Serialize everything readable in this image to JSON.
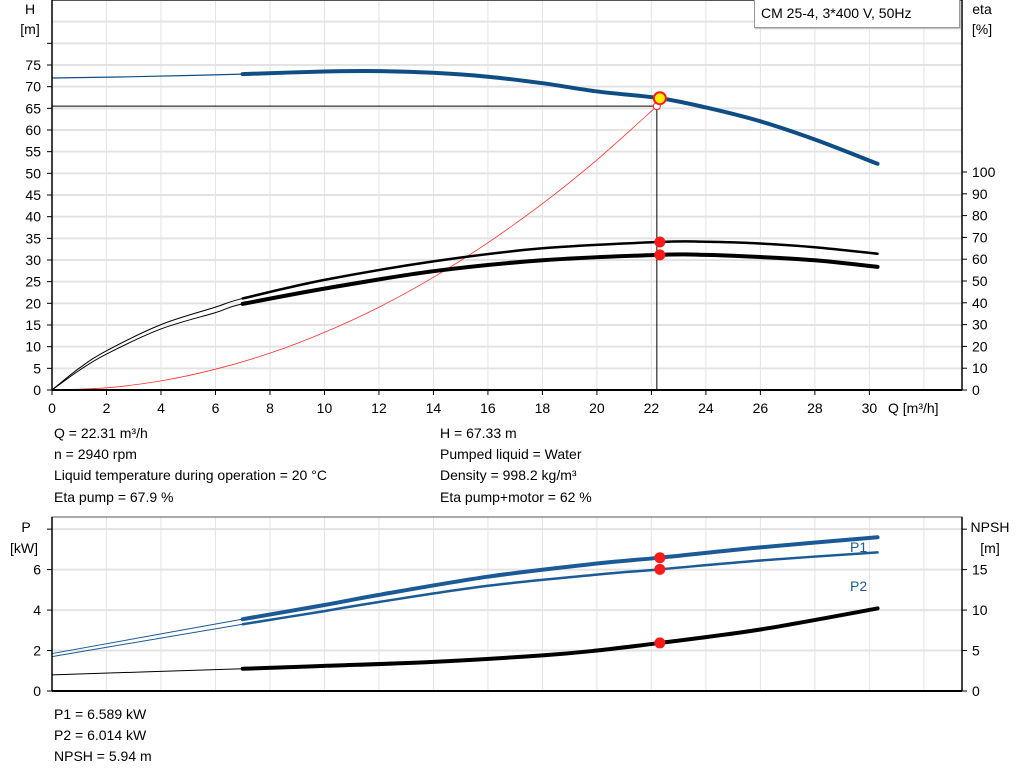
{
  "legend_title": "CM 25-4, 3*400 V, 50Hz",
  "info": {
    "left": [
      "Q = 22.31 m³/h",
      "n = 2940 rpm",
      "Liquid temperature during operation = 20 °C",
      "Eta pump = 67.9 %"
    ],
    "right": [
      "H = 67.33 m",
      "Pumped liquid = Water",
      "Density = 998.2 kg/m³",
      "Eta pump+motor = 62 %"
    ],
    "bottom": [
      "P1 = 6.589 kW",
      "P2 = 6.014 kW",
      "NPSH = 5.94 m"
    ]
  },
  "colors": {
    "head": "#0f4d85",
    "eta": "#000000",
    "system": "#ff3030",
    "power": "#1a5a96",
    "npsh": "#000000",
    "marker": "#ff1a1a",
    "duty_point": "#ffee00",
    "grid": "#e3e3e3"
  },
  "chart_data": [
    {
      "type": "line",
      "xlabel": "Q [m³/h]",
      "ylabel": "H\n[m]",
      "y2label": "eta\n[%]",
      "xlim": [
        0,
        33.4
      ],
      "ylim": [
        0,
        90
      ],
      "y2lim": [
        0,
        100
      ],
      "xticks": [
        0,
        2,
        4,
        6,
        8,
        10,
        12,
        14,
        16,
        18,
        20,
        22,
        24,
        26,
        28,
        30
      ],
      "yticks": [
        0,
        5,
        10,
        15,
        20,
        25,
        30,
        35,
        40,
        45,
        50,
        55,
        60,
        65,
        70,
        75
      ],
      "y2ticks": [
        0,
        10,
        20,
        30,
        40,
        50,
        60,
        70,
        80,
        90,
        100
      ],
      "grid": true,
      "series": [
        {
          "key": "head",
          "axis": "left",
          "x": [
            0,
            3,
            7,
            10,
            12,
            14,
            16,
            18,
            20,
            22.31,
            24,
            26,
            28,
            30.3
          ],
          "y": [
            72,
            72.3,
            72.9,
            73.5,
            73.6,
            73.2,
            72.3,
            70.8,
            68.9,
            67.33,
            65.2,
            62,
            57.8,
            52.2
          ]
        },
        {
          "key": "eta_pump",
          "axis": "right",
          "x": [
            0,
            1,
            2,
            4,
            6,
            7,
            10,
            14,
            18,
            22.31,
            24,
            26,
            28,
            30.3
          ],
          "y": [
            0,
            10,
            18,
            30,
            38,
            42,
            50.5,
            59,
            65,
            67.9,
            68,
            67.2,
            65.5,
            62.5
          ]
        },
        {
          "key": "eta_pump_motor",
          "axis": "right",
          "x": [
            0,
            1,
            2,
            4,
            6,
            7,
            10,
            14,
            18,
            22.31,
            24,
            26,
            28,
            30.3
          ],
          "y": [
            0,
            9,
            16.5,
            28,
            35.5,
            39.5,
            46.5,
            54.5,
            59.5,
            62,
            62,
            61,
            59.5,
            56.5
          ]
        },
        {
          "key": "system",
          "axis": "left",
          "x": [
            0,
            2,
            4,
            6,
            8,
            10,
            12,
            14,
            16,
            18,
            20,
            22.2
          ],
          "y": [
            0,
            0.5,
            2.1,
            4.8,
            8.5,
            13.3,
            19.1,
            26,
            34,
            43,
            53.1,
            65.5
          ]
        }
      ],
      "duty_point": {
        "Q": 22.31,
        "H": 67.33
      },
      "system_point": {
        "Q": 22.2,
        "H": 65.5
      },
      "eta_markers": [
        67.9,
        62
      ]
    },
    {
      "type": "line",
      "ylabel": "P\n[kW]",
      "y2label": "NPSH\n[m]",
      "xlim": [
        0,
        33.4
      ],
      "ylim": [
        0,
        8.6
      ],
      "y2lim": [
        0,
        21.5
      ],
      "yticks": [
        0,
        2,
        4,
        6,
        8
      ],
      "ytick_labels": [
        "0",
        "2",
        "4",
        "6",
        ""
      ],
      "y2ticks": [
        0,
        5,
        10,
        15,
        20
      ],
      "y2tick_labels": [
        "0",
        "5",
        "10",
        "15",
        ""
      ],
      "grid": true,
      "series": [
        {
          "key": "P1",
          "name": "P1",
          "axis": "left",
          "x": [
            0,
            7,
            10,
            12,
            16,
            20,
            22.31,
            26,
            30.3
          ],
          "y": [
            1.85,
            3.55,
            4.25,
            4.75,
            5.65,
            6.3,
            6.589,
            7.1,
            7.6
          ]
        },
        {
          "key": "P2",
          "name": "P2",
          "axis": "left",
          "x": [
            0,
            7,
            10,
            12,
            16,
            20,
            22.31,
            26,
            30.3
          ],
          "y": [
            1.7,
            3.3,
            3.95,
            4.4,
            5.2,
            5.75,
            6.014,
            6.45,
            6.85
          ]
        },
        {
          "key": "NPSH",
          "axis": "right",
          "x": [
            0,
            7,
            10,
            14,
            18,
            20,
            22.31,
            26,
            30.3
          ],
          "y": [
            2,
            2.75,
            3.1,
            3.6,
            4.4,
            5,
            5.94,
            7.6,
            10.2
          ]
        }
      ],
      "markers": {
        "P1": 6.589,
        "P2": 6.014,
        "NPSH": 5.94,
        "Q": 22.31
      }
    }
  ]
}
